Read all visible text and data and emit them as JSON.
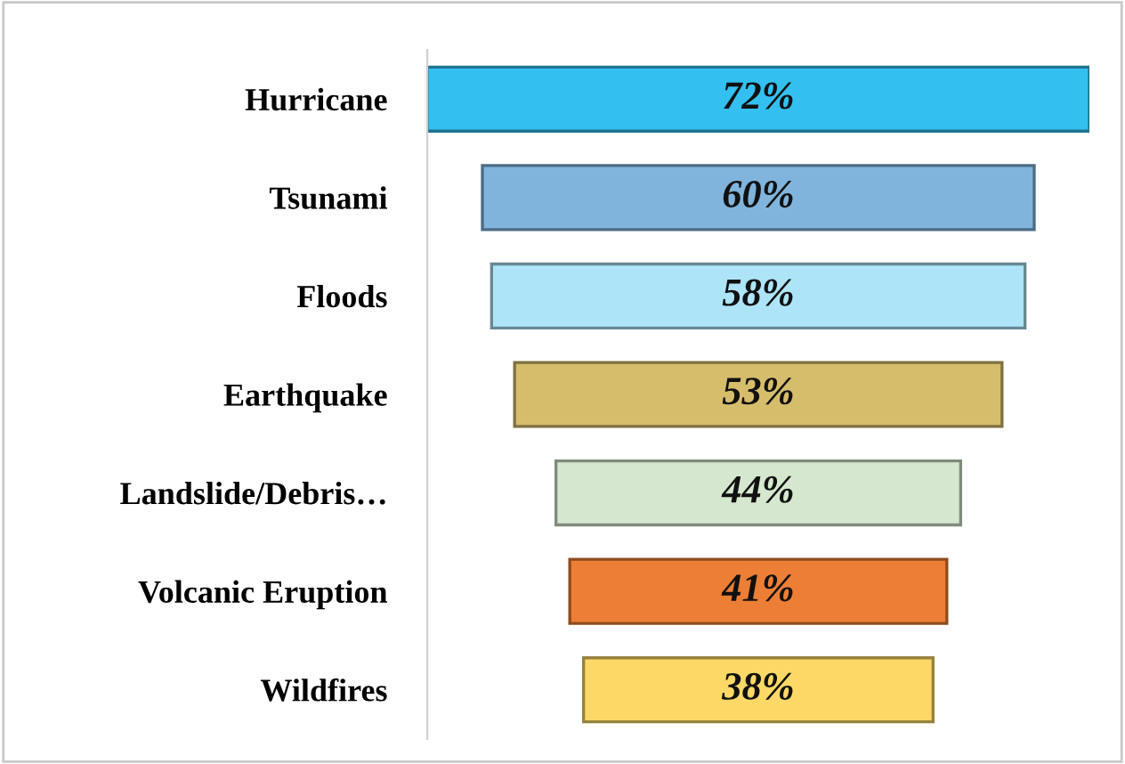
{
  "chart_data": {
    "type": "other",
    "categories": [
      "Hurricane",
      "Tsunami",
      "Floods",
      "Earthquake",
      "Landslide/Debris…",
      "Volcanic Eruption",
      "Wildfires"
    ],
    "values": [
      72,
      60,
      58,
      53,
      44,
      41,
      38
    ],
    "value_labels": [
      "72%",
      "60%",
      "58%",
      "53%",
      "44%",
      "41%",
      "38%"
    ],
    "colors": [
      "#33c0f0",
      "#80b4dc",
      "#aee4f8",
      "#d6bd6c",
      "#d5e8cf",
      "#ec7f35",
      "#fdd866"
    ]
  }
}
